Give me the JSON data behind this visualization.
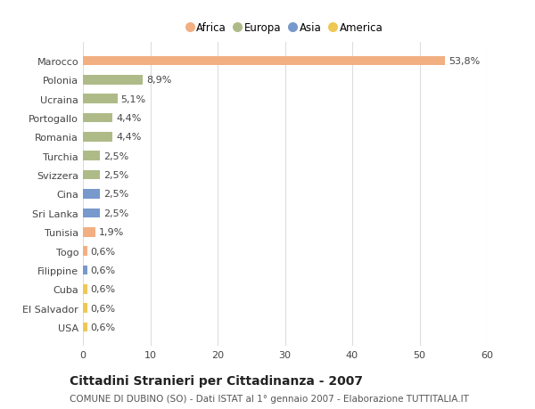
{
  "categories": [
    "Marocco",
    "Polonia",
    "Ucraina",
    "Portogallo",
    "Romania",
    "Turchia",
    "Svizzera",
    "Cina",
    "Sri Lanka",
    "Tunisia",
    "Togo",
    "Filippine",
    "Cuba",
    "El Salvador",
    "USA"
  ],
  "values": [
    53.8,
    8.9,
    5.1,
    4.4,
    4.4,
    2.5,
    2.5,
    2.5,
    2.5,
    1.9,
    0.6,
    0.6,
    0.6,
    0.6,
    0.6
  ],
  "labels": [
    "53,8%",
    "8,9%",
    "5,1%",
    "4,4%",
    "4,4%",
    "2,5%",
    "2,5%",
    "2,5%",
    "2,5%",
    "1,9%",
    "0,6%",
    "0,6%",
    "0,6%",
    "0,6%",
    "0,6%"
  ],
  "continents": [
    "Africa",
    "Europa",
    "Europa",
    "Europa",
    "Europa",
    "Europa",
    "Europa",
    "Asia",
    "Asia",
    "Africa",
    "Africa",
    "Asia",
    "America",
    "America",
    "America"
  ],
  "colors": {
    "Africa": "#F2AF82",
    "Europa": "#AEBB88",
    "Asia": "#7799CC",
    "America": "#EEC855"
  },
  "title": "Cittadini Stranieri per Cittadinanza - 2007",
  "subtitle": "COMUNE DI DUBINO (SO) - Dati ISTAT al 1° gennaio 2007 - Elaborazione TUTTITALIA.IT",
  "xlim": [
    0,
    60
  ],
  "xticks": [
    0,
    10,
    20,
    30,
    40,
    50,
    60
  ],
  "background_color": "#ffffff",
  "grid_color": "#dddddd",
  "bar_height": 0.5,
  "label_fontsize": 8,
  "tick_fontsize": 8,
  "title_fontsize": 10,
  "subtitle_fontsize": 7.5,
  "legend_entries": [
    "Africa",
    "Europa",
    "Asia",
    "America"
  ]
}
